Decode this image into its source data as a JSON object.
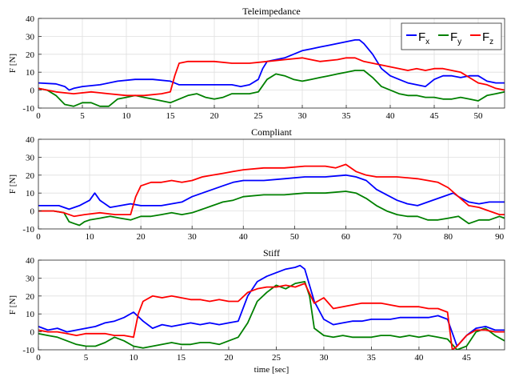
{
  "colors": {
    "Fx": "#0000ff",
    "Fy": "#008000",
    "Fz": "#ff0000",
    "grid": "#dfdfdf",
    "axis": "#262626"
  },
  "legend": {
    "placement": "top-right of first panel",
    "entries": [
      {
        "letter": "F",
        "sub": "x",
        "series": "Fx"
      },
      {
        "letter": "F",
        "sub": "y",
        "series": "Fy"
      },
      {
        "letter": "F",
        "sub": "z",
        "series": "Fz"
      }
    ]
  },
  "chart_data": [
    {
      "type": "line",
      "title": "Teleimpedance",
      "xlabel": "",
      "ylabel": "F [N]",
      "xlim": [
        0,
        53
      ],
      "ylim": [
        -10,
        40
      ],
      "xticks": [
        0,
        5,
        10,
        15,
        20,
        25,
        30,
        35,
        40,
        45,
        50
      ],
      "yticks": [
        -10,
        0,
        10,
        20,
        30,
        40
      ],
      "grid": true,
      "series": [
        {
          "name": "Fx",
          "x": [
            0,
            2,
            3,
            3.5,
            4,
            5,
            7,
            9,
            11,
            13,
            15,
            16,
            17,
            18,
            20,
            22,
            23,
            24,
            25,
            25.5,
            26,
            27,
            28,
            29,
            30,
            31,
            32,
            33,
            34,
            35,
            36,
            36.5,
            37,
            38,
            39,
            40,
            41,
            42,
            43,
            44,
            45,
            46,
            47,
            48,
            49,
            50,
            51,
            52,
            53
          ],
          "y": [
            4,
            3.5,
            2,
            0,
            1,
            2,
            3,
            5,
            6,
            6,
            5,
            3,
            3,
            3,
            3,
            3,
            2,
            3,
            6,
            12,
            16,
            17,
            18,
            20,
            22,
            23,
            24,
            25,
            26,
            27,
            28,
            28,
            26,
            20,
            12,
            8,
            6,
            4,
            3,
            2,
            6,
            8,
            8,
            7,
            8,
            8,
            5,
            4,
            4
          ]
        },
        {
          "name": "Fy",
          "x": [
            0,
            1,
            2,
            3,
            4,
            5,
            6,
            7,
            8,
            9,
            10,
            11,
            12,
            13,
            14,
            15,
            16,
            17,
            18,
            19,
            20,
            21,
            22,
            23,
            24,
            25,
            26,
            27,
            28,
            29,
            30,
            31,
            32,
            33,
            34,
            35,
            36,
            37,
            38,
            39,
            40,
            41,
            42,
            43,
            44,
            45,
            46,
            47,
            48,
            49,
            50,
            51,
            52,
            53
          ],
          "y": [
            1,
            0,
            -3,
            -8,
            -9,
            -7,
            -7,
            -9,
            -9,
            -5,
            -4,
            -3,
            -4,
            -5,
            -6,
            -7,
            -5,
            -3,
            -2,
            -4,
            -5,
            -4,
            -2,
            -2,
            -2,
            -1,
            6,
            9,
            8,
            6,
            5,
            6,
            7,
            8,
            9,
            10,
            11,
            11,
            7,
            2,
            0,
            -2,
            -3,
            -3,
            -4,
            -4,
            -5,
            -5,
            -4,
            -5,
            -6,
            -3,
            -2,
            -1
          ]
        },
        {
          "name": "Fz",
          "x": [
            0,
            2,
            4,
            6,
            8,
            10,
            12,
            14,
            15,
            15.5,
            16,
            17,
            18,
            19,
            20,
            22,
            24,
            26,
            28,
            30,
            32,
            34,
            35,
            36,
            37,
            38,
            39,
            40,
            41,
            42,
            43,
            44,
            45,
            46,
            47,
            48,
            49,
            50,
            51,
            52,
            53
          ],
          "y": [
            1,
            -1,
            -2,
            -1,
            -2,
            -3,
            -3,
            -2,
            -1,
            8,
            15,
            16,
            16,
            16,
            16,
            15,
            15,
            16,
            17,
            18,
            16,
            17,
            18,
            18,
            16,
            15,
            14,
            13,
            12,
            11,
            12,
            11,
            12,
            12,
            11,
            10,
            7,
            4,
            3,
            1,
            0
          ]
        }
      ]
    },
    {
      "type": "line",
      "title": "Compliant",
      "xlabel": "",
      "ylabel": "F [N]",
      "xlim": [
        0,
        91
      ],
      "ylim": [
        -10,
        40
      ],
      "xticks": [
        0,
        10,
        20,
        30,
        40,
        50,
        60,
        70,
        80,
        90
      ],
      "yticks": [
        -10,
        0,
        10,
        20,
        30,
        40
      ],
      "grid": true,
      "series": [
        {
          "name": "Fx",
          "x": [
            0,
            4,
            6,
            8,
            10,
            11,
            12,
            14,
            16,
            18,
            20,
            22,
            24,
            26,
            28,
            30,
            32,
            34,
            36,
            38,
            40,
            44,
            48,
            52,
            56,
            60,
            62,
            64,
            66,
            68,
            70,
            72,
            74,
            76,
            78,
            80,
            81,
            82,
            84,
            86,
            88,
            90,
            91
          ],
          "y": [
            3,
            3,
            1,
            3,
            6,
            10,
            6,
            2,
            3,
            4,
            3,
            3,
            3,
            4,
            5,
            8,
            10,
            12,
            14,
            16,
            17,
            17,
            18,
            19,
            19,
            20,
            19,
            17,
            12,
            9,
            6,
            4,
            3,
            5,
            7,
            9,
            10,
            8,
            5,
            4,
            5,
            5,
            5
          ]
        },
        {
          "name": "Fy",
          "x": [
            0,
            3,
            5,
            6,
            7,
            8,
            9,
            10,
            12,
            14,
            16,
            18,
            20,
            22,
            24,
            26,
            28,
            30,
            32,
            34,
            36,
            38,
            40,
            44,
            48,
            52,
            56,
            60,
            62,
            64,
            66,
            68,
            70,
            72,
            74,
            76,
            78,
            80,
            82,
            84,
            86,
            88,
            90,
            91
          ],
          "y": [
            0,
            0,
            -1,
            -6,
            -7,
            -8,
            -6,
            -5,
            -4,
            -3,
            -4,
            -5,
            -3,
            -3,
            -2,
            -1,
            -2,
            -1,
            1,
            3,
            5,
            6,
            8,
            9,
            9,
            10,
            10,
            11,
            10,
            7,
            3,
            0,
            -2,
            -3,
            -3,
            -5,
            -5,
            -4,
            -3,
            -7,
            -5,
            -5,
            -3,
            -4
          ]
        },
        {
          "name": "Fz",
          "x": [
            0,
            3,
            5,
            7,
            9,
            12,
            15,
            18,
            19,
            20,
            22,
            24,
            26,
            28,
            30,
            32,
            34,
            36,
            38,
            40,
            44,
            48,
            52,
            56,
            58,
            60,
            62,
            64,
            66,
            70,
            74,
            76,
            78,
            80,
            82,
            84,
            86,
            88,
            90,
            91
          ],
          "y": [
            0,
            0,
            -1,
            -3,
            -2,
            -1,
            -2,
            -2,
            8,
            14,
            16,
            16,
            17,
            16,
            17,
            19,
            20,
            21,
            22,
            23,
            24,
            24,
            25,
            25,
            24,
            26,
            22,
            20,
            19,
            19,
            18,
            17,
            16,
            13,
            8,
            3,
            2,
            0,
            -2,
            -2
          ]
        }
      ]
    },
    {
      "type": "line",
      "title": "Stiff",
      "xlabel": "time [sec]",
      "ylabel": "F [N]",
      "xlim": [
        0,
        49
      ],
      "ylim": [
        -10,
        40
      ],
      "xticks": [
        0,
        5,
        10,
        15,
        20,
        25,
        30,
        35,
        40,
        45
      ],
      "yticks": [
        -10,
        0,
        10,
        20,
        30,
        40
      ],
      "grid": true,
      "series": [
        {
          "name": "Fx",
          "x": [
            0,
            1,
            2,
            3,
            4,
            5,
            6,
            7,
            8,
            9,
            10,
            11,
            12,
            13,
            14,
            15,
            16,
            17,
            18,
            19,
            20,
            21,
            22,
            23,
            24,
            25,
            26,
            27,
            27.5,
            28,
            29,
            30,
            31,
            32,
            33,
            34,
            35,
            36,
            37,
            38,
            39,
            40,
            41,
            42,
            43,
            44,
            45,
            46,
            47,
            48,
            49
          ],
          "y": [
            3,
            1,
            2,
            0,
            1,
            2,
            3,
            5,
            6,
            8,
            11,
            6,
            2,
            4,
            3,
            4,
            5,
            4,
            5,
            4,
            5,
            6,
            20,
            28,
            31,
            33,
            35,
            36,
            37,
            35,
            17,
            7,
            4,
            5,
            6,
            6,
            7,
            7,
            7,
            8,
            8,
            8,
            8,
            9,
            7,
            -8,
            -2,
            2,
            3,
            1,
            1
          ]
        },
        {
          "name": "Fy",
          "x": [
            0,
            1,
            2,
            3,
            4,
            5,
            6,
            7,
            8,
            9,
            10,
            11,
            12,
            13,
            14,
            15,
            16,
            17,
            18,
            19,
            20,
            21,
            22,
            23,
            24,
            25,
            26,
            27,
            28,
            28.5,
            29,
            30,
            31,
            32,
            33,
            34,
            35,
            36,
            37,
            38,
            39,
            40,
            41,
            42,
            43,
            44,
            45,
            46,
            47,
            48,
            49
          ],
          "y": [
            -1,
            -2,
            -3,
            -5,
            -7,
            -8,
            -8,
            -6,
            -3,
            -5,
            -8,
            -9,
            -8,
            -7,
            -6,
            -7,
            -7,
            -6,
            -6,
            -7,
            -5,
            -3,
            5,
            17,
            22,
            26,
            24,
            27,
            28,
            20,
            2,
            -2,
            -3,
            -2,
            -3,
            -3,
            -3,
            -2,
            -2,
            -3,
            -2,
            -3,
            -2,
            -3,
            -4,
            -10,
            -8,
            0,
            2,
            -2,
            -5
          ]
        },
        {
          "name": "Fz",
          "x": [
            0,
            1,
            2,
            3,
            4,
            5,
            6,
            7,
            8,
            9,
            10,
            10.5,
            11,
            12,
            13,
            14,
            15,
            16,
            17,
            18,
            19,
            20,
            21,
            22,
            23,
            24,
            25,
            26,
            27,
            28,
            29,
            30,
            31,
            32,
            33,
            34,
            35,
            36,
            37,
            38,
            39,
            40,
            41,
            42,
            43,
            43.5,
            44,
            45,
            46,
            47,
            48,
            49
          ],
          "y": [
            1,
            0,
            0,
            -1,
            -2,
            -1,
            -1,
            -1,
            -2,
            -2,
            -3,
            10,
            17,
            20,
            19,
            20,
            19,
            18,
            18,
            17,
            18,
            17,
            17,
            22,
            24,
            25,
            25,
            26,
            25,
            27,
            16,
            19,
            13,
            14,
            15,
            16,
            16,
            16,
            15,
            14,
            14,
            14,
            13,
            13,
            11,
            -10,
            -8,
            -2,
            1,
            1,
            0,
            0
          ]
        }
      ]
    }
  ]
}
